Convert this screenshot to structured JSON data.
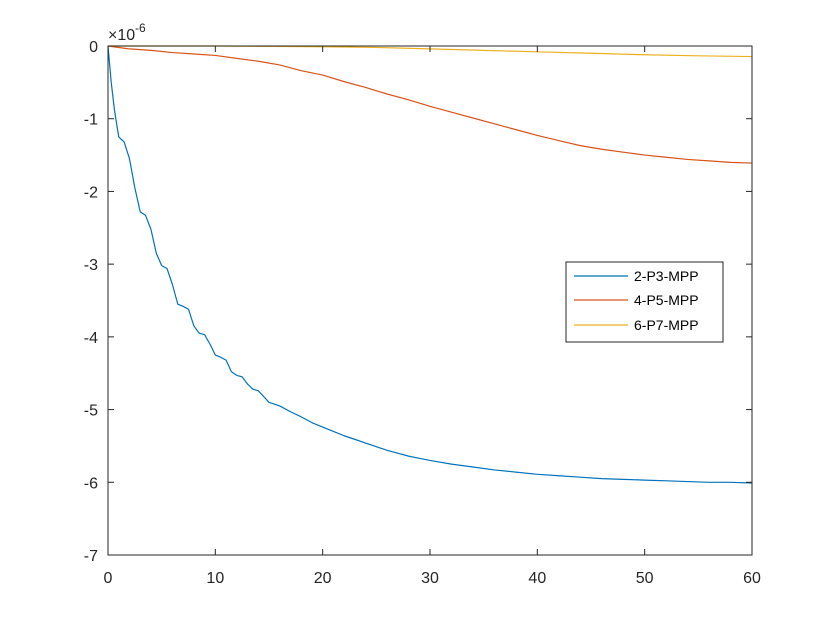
{
  "chart_data": {
    "type": "line",
    "title": "",
    "xlabel": "",
    "ylabel": "",
    "xlim": [
      0,
      60
    ],
    "ylim": [
      -7e-06,
      0
    ],
    "x_ticks": [
      0,
      10,
      20,
      30,
      40,
      50,
      60
    ],
    "x_tick_labels": [
      "0",
      "10",
      "20",
      "30",
      "40",
      "50",
      "60"
    ],
    "y_ticks": [
      0,
      -1e-06,
      -2e-06,
      -3e-06,
      -4e-06,
      -5e-06,
      -6e-06,
      -7e-06
    ],
    "y_tick_labels": [
      "0",
      "-1",
      "-2",
      "-3",
      "-4",
      "-5",
      "-6",
      "-7"
    ],
    "y_exponent_base": "×10",
    "y_exponent_power": "-6",
    "grid": false,
    "legend_position": "right",
    "series": [
      {
        "name": "2-P3-MPP",
        "color": "#0072BD",
        "x": [
          0,
          0.3,
          0.6,
          1,
          1.5,
          2,
          2.5,
          3,
          3.5,
          4,
          4.5,
          5,
          5.5,
          6,
          6.5,
          7,
          7.5,
          8,
          8.5,
          9,
          9.5,
          10,
          10.5,
          11,
          11.5,
          12,
          12.5,
          13,
          13.5,
          14,
          14.5,
          15,
          16,
          17,
          18,
          19,
          20,
          21,
          22,
          23,
          24,
          25,
          26,
          27,
          28,
          29,
          30,
          32,
          34,
          36,
          38,
          40,
          42,
          44,
          46,
          48,
          50,
          52,
          54,
          56,
          58,
          60
        ],
        "y": [
          0,
          -5e-07,
          -8.8e-07,
          -1.25e-06,
          -1.32e-06,
          -1.55e-06,
          -1.95e-06,
          -2.28e-06,
          -2.33e-06,
          -2.52e-06,
          -2.85e-06,
          -3.02e-06,
          -3.06e-06,
          -3.28e-06,
          -3.55e-06,
          -3.58e-06,
          -3.62e-06,
          -3.85e-06,
          -3.95e-06,
          -3.97e-06,
          -4.1e-06,
          -4.25e-06,
          -4.28e-06,
          -4.32e-06,
          -4.48e-06,
          -4.53e-06,
          -4.55e-06,
          -4.65e-06,
          -4.72e-06,
          -4.74e-06,
          -4.82e-06,
          -4.9e-06,
          -4.95e-06,
          -5.03e-06,
          -5.1e-06,
          -5.18e-06,
          -5.24e-06,
          -5.3e-06,
          -5.36e-06,
          -5.41e-06,
          -5.46e-06,
          -5.51e-06,
          -5.56e-06,
          -5.6e-06,
          -5.64e-06,
          -5.67e-06,
          -5.7e-06,
          -5.75e-06,
          -5.79e-06,
          -5.83e-06,
          -5.86e-06,
          -5.89e-06,
          -5.91e-06,
          -5.93e-06,
          -5.95e-06,
          -5.96e-06,
          -5.97e-06,
          -5.98e-06,
          -5.99e-06,
          -6e-06,
          -6e-06,
          -6.01e-06
        ]
      },
      {
        "name": "4-P5-MPP",
        "color": "#D95319",
        "x": [
          0,
          2,
          4,
          6,
          8,
          10,
          12,
          14,
          16,
          18,
          20,
          22,
          24,
          26,
          28,
          30,
          32,
          34,
          36,
          38,
          40,
          42,
          44,
          46,
          48,
          50,
          52,
          54,
          56,
          58,
          60
        ],
        "y": [
          0,
          -4e-08,
          -6e-08,
          -9e-08,
          -1.1e-07,
          -1.3e-07,
          -1.7e-07,
          -2.1e-07,
          -2.6e-07,
          -3.4e-07,
          -4e-07,
          -4.9e-07,
          -5.7e-07,
          -6.6e-07,
          -7.4e-07,
          -8.3e-07,
          -9.1e-07,
          -9.9e-07,
          -1.07e-06,
          -1.15e-06,
          -1.23e-06,
          -1.3e-06,
          -1.37e-06,
          -1.42e-06,
          -1.46e-06,
          -1.5e-06,
          -1.53e-06,
          -1.56e-06,
          -1.58e-06,
          -1.6e-06,
          -1.61e-06
        ]
      },
      {
        "name": "6-P7-MPP",
        "color": "#EDB120",
        "x": [
          0,
          10,
          20,
          25,
          30,
          35,
          40,
          45,
          50,
          55,
          60
        ],
        "y": [
          0,
          0,
          -1e-08,
          -2e-08,
          -4e-08,
          -6e-08,
          -8e-08,
          -1e-07,
          -1.2e-07,
          -1.35e-07,
          -1.45e-07
        ]
      }
    ]
  }
}
